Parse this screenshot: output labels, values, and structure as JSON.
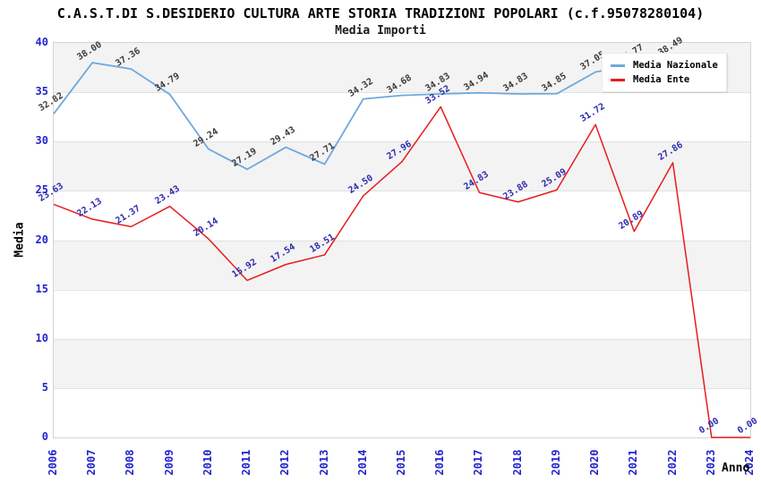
{
  "title": "C.A.S.T.DI S.DESIDERIO CULTURA ARTE STORIA TRADIZIONI POPOLARI (c.f.95078280104)",
  "subtitle": "Media Importi",
  "axes": {
    "y_label": "Media",
    "x_label": "Anno",
    "y_ticks": [
      0,
      5,
      10,
      15,
      20,
      25,
      30,
      35,
      40
    ],
    "x_ticks": [
      "2006",
      "2007",
      "2008",
      "2009",
      "2010",
      "2011",
      "2012",
      "2013",
      "2014",
      "2015",
      "2016",
      "2017",
      "2018",
      "2019",
      "2020",
      "2021",
      "2022",
      "2023",
      "2024"
    ]
  },
  "legend": {
    "items": [
      {
        "label": "Media Nazionale",
        "color": "#6fa8dc"
      },
      {
        "label": "Media Ente",
        "color": "#e81c1c"
      }
    ]
  },
  "colors": {
    "tick_text": "#2323cd",
    "stripe": "#f3f3f3",
    "gridline": "#e2e2e2",
    "plot_border": "#d4d4d4",
    "nazionale_line": "#6fa8dc",
    "nazionale_label_text": "#3a3a3a",
    "ente_line": "#e81c1c",
    "ente_label_text": "#2a2ab0"
  },
  "chart_data": {
    "type": "line",
    "x": [
      2006,
      2007,
      2008,
      2009,
      2010,
      2011,
      2012,
      2013,
      2014,
      2015,
      2016,
      2017,
      2018,
      2019,
      2020,
      2021,
      2022,
      2023,
      2024
    ],
    "ylim": [
      0,
      40
    ],
    "grid": "horizontal-bands-every-5",
    "legend_position": "top-right-inside",
    "series": [
      {
        "name": "Media Nazionale",
        "color": "#6fa8dc",
        "label_color": "#3a3a3a",
        "values": [
          32.82,
          38.0,
          37.36,
          34.79,
          29.24,
          27.19,
          29.43,
          27.71,
          34.32,
          34.68,
          34.83,
          34.94,
          34.83,
          34.85,
          37.05,
          37.77,
          38.49,
          null,
          null
        ]
      },
      {
        "name": "Media Ente",
        "color": "#e81c1c",
        "label_color": "#2a2ab0",
        "values": [
          23.63,
          22.13,
          21.37,
          23.43,
          20.14,
          15.92,
          17.54,
          18.51,
          24.5,
          27.96,
          33.52,
          24.83,
          23.88,
          25.09,
          31.72,
          20.89,
          27.86,
          0.0,
          0.0
        ]
      }
    ]
  }
}
